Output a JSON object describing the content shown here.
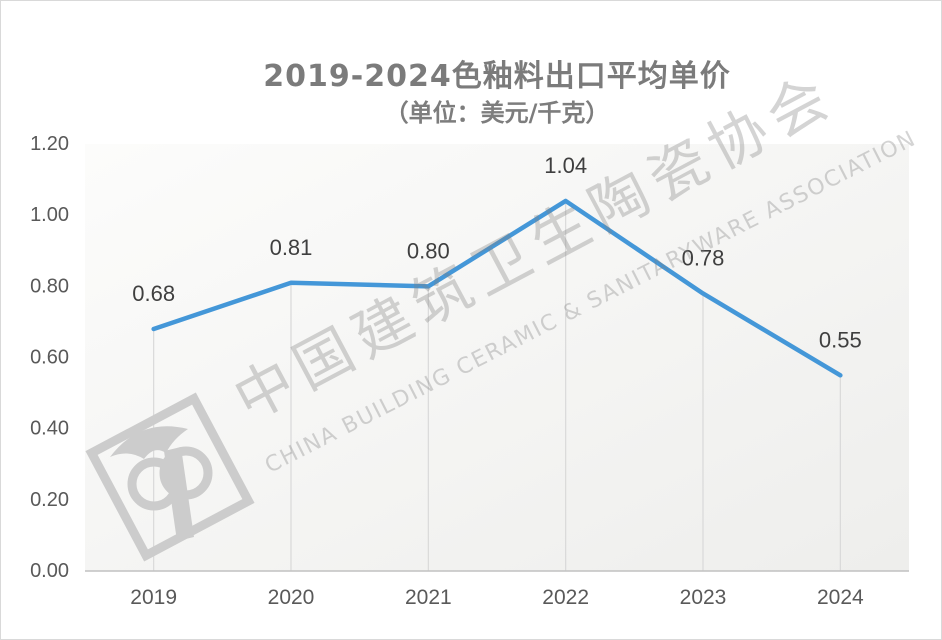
{
  "chart_data": {
    "type": "line",
    "title": "2019-2024色釉料出口平均单价",
    "subtitle": "（单位：美元/千克）",
    "categories": [
      "2019",
      "2020",
      "2021",
      "2022",
      "2023",
      "2024"
    ],
    "values": [
      0.68,
      0.81,
      0.8,
      1.04,
      0.78,
      0.55
    ],
    "point_labels": [
      "0.68",
      "0.81",
      "0.80",
      "1.04",
      "0.78",
      "0.55"
    ],
    "xlabel": "",
    "ylabel": "",
    "ylim": [
      0.0,
      1.2
    ],
    "yticks": [
      0.0,
      0.2,
      0.4,
      0.6,
      0.8,
      1.0,
      1.2
    ],
    "ytick_labels": [
      "0.00",
      "0.20",
      "0.40",
      "0.60",
      "0.80",
      "1.00",
      "1.20"
    ],
    "legend": "none",
    "horizontal_gridlines": "off",
    "drop_lines": "on",
    "line_color": "#4497d8",
    "data_label_color": "#3f3f3f",
    "axis_text_color": "#595959",
    "title_color": "#7b7b7b"
  },
  "watermark": {
    "text_cn": "中国建筑卫生陶瓷协会",
    "text_en": "CHINA BUILDING CERAMIC & SANITARYWARE ASSOCIATION",
    "logo_name": "cbcsa-emblem",
    "color": "#cccccc"
  },
  "frame": {
    "border_color": "#d9d9d9",
    "background": "#ffffff",
    "plot_bg_from": "#fcfcfb",
    "plot_bg_to": "#eeeeec",
    "drop_line_color": "#d9d9d9",
    "axis_line_color": "#c1c1c1"
  }
}
